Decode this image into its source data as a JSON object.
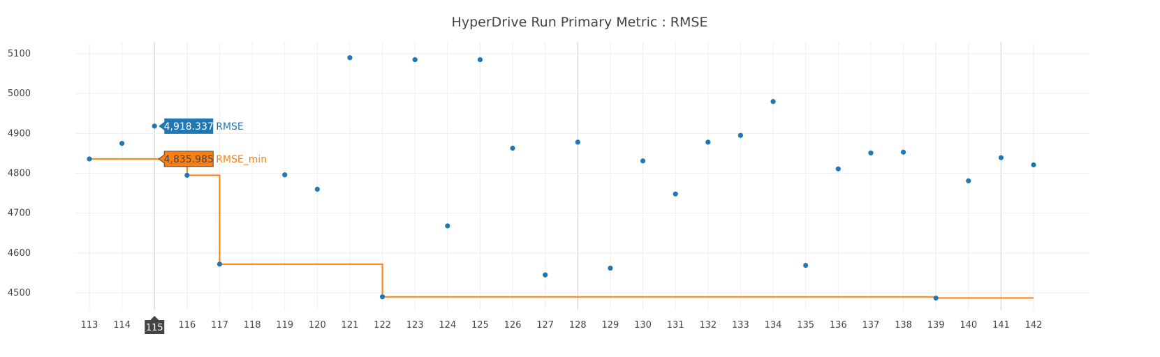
{
  "chart_data": {
    "type": "scatter",
    "title": "HyperDrive Run Primary Metric : RMSE",
    "xlabel": "",
    "ylabel": "",
    "x": [
      113,
      114,
      115,
      116,
      117,
      118,
      119,
      120,
      121,
      122,
      123,
      124,
      125,
      126,
      127,
      128,
      129,
      130,
      131,
      132,
      133,
      134,
      135,
      136,
      137,
      138,
      139,
      140,
      141,
      142
    ],
    "xlim": [
      112,
      143
    ],
    "ylim": [
      4450,
      5130
    ],
    "yticks": [
      4500,
      4600,
      4700,
      4800,
      4900,
      5000,
      5100
    ],
    "grid": true,
    "series": [
      {
        "name": "RMSE",
        "mode": "markers",
        "color": "#1f77b4",
        "x": [
          113,
          114,
          115,
          116,
          117,
          119,
          120,
          121,
          122,
          123,
          124,
          125,
          126,
          127,
          128,
          129,
          130,
          131,
          132,
          133,
          134,
          135,
          136,
          137,
          138,
          139,
          140,
          141,
          142
        ],
        "y": [
          4835.985,
          4875,
          4918.337,
          4795,
          4572,
          4796,
          4760,
          5090,
          4490,
          5085,
          4668,
          5085,
          4863,
          4545,
          4878,
          4562,
          4831,
          4748,
          4878,
          4895,
          4980,
          4569,
          4811,
          4851,
          4853,
          4487,
          4781,
          4839,
          4821
        ]
      },
      {
        "name": "RMSE_min",
        "mode": "line-step",
        "color": "#ff7f0e",
        "x": [
          113,
          114,
          115,
          116,
          117,
          118,
          119,
          120,
          121,
          122,
          123,
          124,
          125,
          126,
          127,
          128,
          129,
          130,
          131,
          132,
          133,
          134,
          135,
          136,
          137,
          138,
          139,
          140,
          141,
          142
        ],
        "y": [
          4835.985,
          4835.985,
          4835.985,
          4795,
          4572,
          4572,
          4572,
          4572,
          4572,
          4490,
          4490,
          4490,
          4490,
          4490,
          4490,
          4490,
          4490,
          4490,
          4490,
          4490,
          4490,
          4490,
          4490,
          4490,
          4490,
          4490,
          4487,
          4487,
          4487,
          4487
        ]
      }
    ],
    "hover": {
      "x": 115,
      "x_label": "115",
      "tooltips": [
        {
          "series": "RMSE",
          "value_text": "4,918.337",
          "label": "RMSE",
          "color": "#1f77b4",
          "text_color": "#ffffff",
          "y": 4918.337
        },
        {
          "series": "RMSE_min",
          "value_text": "4,835.985",
          "label": "RMSE_min",
          "color": "#ff7f0e",
          "text_color": "#444444",
          "y": 4835.985
        }
      ]
    },
    "vertical_lines_at": [
      115,
      128,
      141
    ]
  }
}
